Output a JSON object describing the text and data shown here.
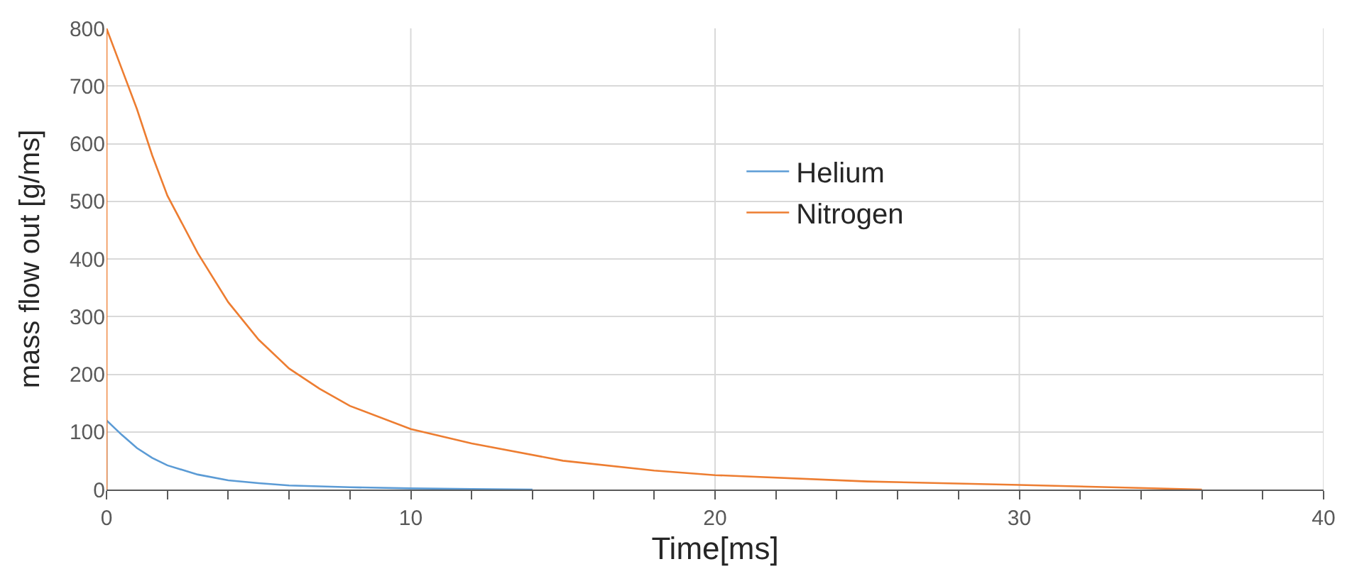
{
  "chart_data": {
    "type": "line",
    "xlabel": "Time[ms]",
    "ylabel": "mass flow out [g/ms]",
    "series": [
      {
        "name": "Helium",
        "color": "#5b9bd5",
        "x": [
          0,
          0,
          0.5,
          1,
          1.5,
          2,
          3,
          4,
          5,
          6,
          8,
          10,
          12,
          14
        ],
        "values": [
          0,
          120,
          95,
          72,
          55,
          42,
          26,
          16,
          11,
          7,
          4,
          2,
          1,
          0
        ]
      },
      {
        "name": "Nitrogen",
        "color": "#ed7d31",
        "x": [
          0,
          0,
          0.5,
          1,
          1.5,
          2,
          3,
          4,
          5,
          6,
          7,
          8,
          10,
          12,
          15,
          18,
          20,
          25,
          30,
          33,
          36
        ],
        "values": [
          0,
          800,
          730,
          660,
          580,
          510,
          410,
          325,
          260,
          210,
          175,
          145,
          105,
          80,
          50,
          33,
          25,
          14,
          8,
          4,
          0
        ]
      }
    ],
    "xlim": [
      0,
      40
    ],
    "ylim": [
      0,
      800
    ],
    "xticks": [
      0,
      {
        "value": 2,
        "label": null
      },
      {
        "value": 4,
        "label": null
      },
      {
        "value": 6,
        "label": null
      },
      {
        "value": 8,
        "label": null
      },
      10,
      {
        "value": 12,
        "label": null
      },
      {
        "value": 14,
        "label": null
      },
      {
        "value": 16,
        "label": null
      },
      {
        "value": 18,
        "label": null
      },
      20,
      {
        "value": 22,
        "label": null
      },
      {
        "value": 24,
        "label": null
      },
      {
        "value": 26,
        "label": null
      },
      {
        "value": 28,
        "label": null
      },
      30,
      {
        "value": 32,
        "label": null
      },
      {
        "value": 34,
        "label": null
      },
      {
        "value": 36,
        "label": null
      },
      {
        "value": 38,
        "label": null
      },
      40
    ],
    "yticks": [
      0,
      100,
      200,
      300,
      400,
      500,
      600,
      700,
      800
    ],
    "grid": true,
    "legend": "right",
    "marker": "none",
    "line_style": "solid"
  }
}
